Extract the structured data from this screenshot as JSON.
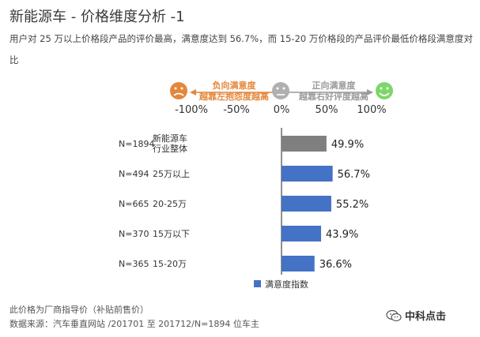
{
  "header": {
    "title": "新能源车 - 价格维度分析 -1",
    "subtitle": "用户对 25 万以上价格段产品的评价最高，满意度达到 56.7%，而 15-20 万价格段的产品评价最低价格段满意度对比"
  },
  "scale": {
    "negative_label_1": "负向满意度",
    "negative_label_2": "越靠左抱怨度越高",
    "positive_label_1": "正向满意度",
    "positive_label_2": "越靠右好评度越高",
    "ticks": [
      "-100%",
      "-50%",
      "0%",
      "50%",
      "100%"
    ],
    "icons": [
      "sad-face-icon",
      "neutral-face-icon",
      "happy-face-icon"
    ]
  },
  "chart_data": {
    "type": "bar",
    "orientation": "horizontal",
    "categories": [
      "新能源车行业整体",
      "25万以上",
      "20-25万",
      "15万以下",
      "15-20万"
    ],
    "category_lines": [
      [
        "新能源车",
        "行业整体"
      ],
      [
        "25万以上"
      ],
      [
        "20-25万"
      ],
      [
        "15万以下"
      ],
      [
        "15-20万"
      ]
    ],
    "sample_sizes": [
      "N=1894",
      "N=494",
      "N=665",
      "N=370",
      "N=365"
    ],
    "series": [
      {
        "name": "满意度指数",
        "values": [
          49.9,
          56.7,
          55.2,
          43.9,
          36.6
        ]
      }
    ],
    "value_labels": [
      "49.9%",
      "56.7%",
      "55.2%",
      "43.9%",
      "36.6%"
    ],
    "xlim": [
      -100,
      100
    ],
    "legend": "bottom",
    "colors": {
      "overall": "#7f7f7f",
      "segment": "#4472c4"
    }
  },
  "footer": {
    "note": "此价格为厂商指导价（补贴前售价）",
    "source": "数据来源：汽车垂直网站 /201701 至 201712/N=1894 位车主",
    "brand": "中科点击",
    "brand_icon": "wechat-icon"
  },
  "colors": {
    "negative": "#e3873b",
    "neutral": "#b0b0b0",
    "positive": "#7ed66a"
  }
}
